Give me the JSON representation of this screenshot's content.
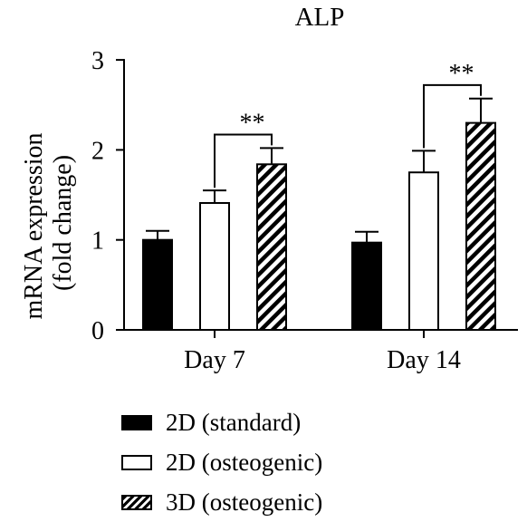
{
  "chart_data": {
    "type": "bar",
    "title": "ALP",
    "ylabel_lines": [
      "mRNA expression",
      "(fold change)"
    ],
    "xlabel": "",
    "categories": [
      "Day 7",
      "Day 14"
    ],
    "ylim": [
      0,
      3
    ],
    "yticks": [
      0,
      1,
      2,
      3
    ],
    "series": [
      {
        "name": "2D (standard)",
        "fill": "solid",
        "values": [
          1.0,
          0.97
        ],
        "errors": [
          0.1,
          0.12
        ]
      },
      {
        "name": "2D (osteogenic)",
        "fill": "open",
        "values": [
          1.41,
          1.75
        ],
        "errors": [
          0.14,
          0.24
        ]
      },
      {
        "name": "3D (osteogenic)",
        "fill": "hatch",
        "values": [
          1.84,
          2.3
        ],
        "errors": [
          0.18,
          0.27
        ]
      }
    ],
    "significance": [
      {
        "category": "Day 7",
        "from_series": 1,
        "to_series": 2,
        "label": "**",
        "level": 2.17
      },
      {
        "category": "Day 14",
        "from_series": 1,
        "to_series": 2,
        "label": "**",
        "level": 2.72
      }
    ],
    "grid": false,
    "legend_position": "bottom"
  }
}
